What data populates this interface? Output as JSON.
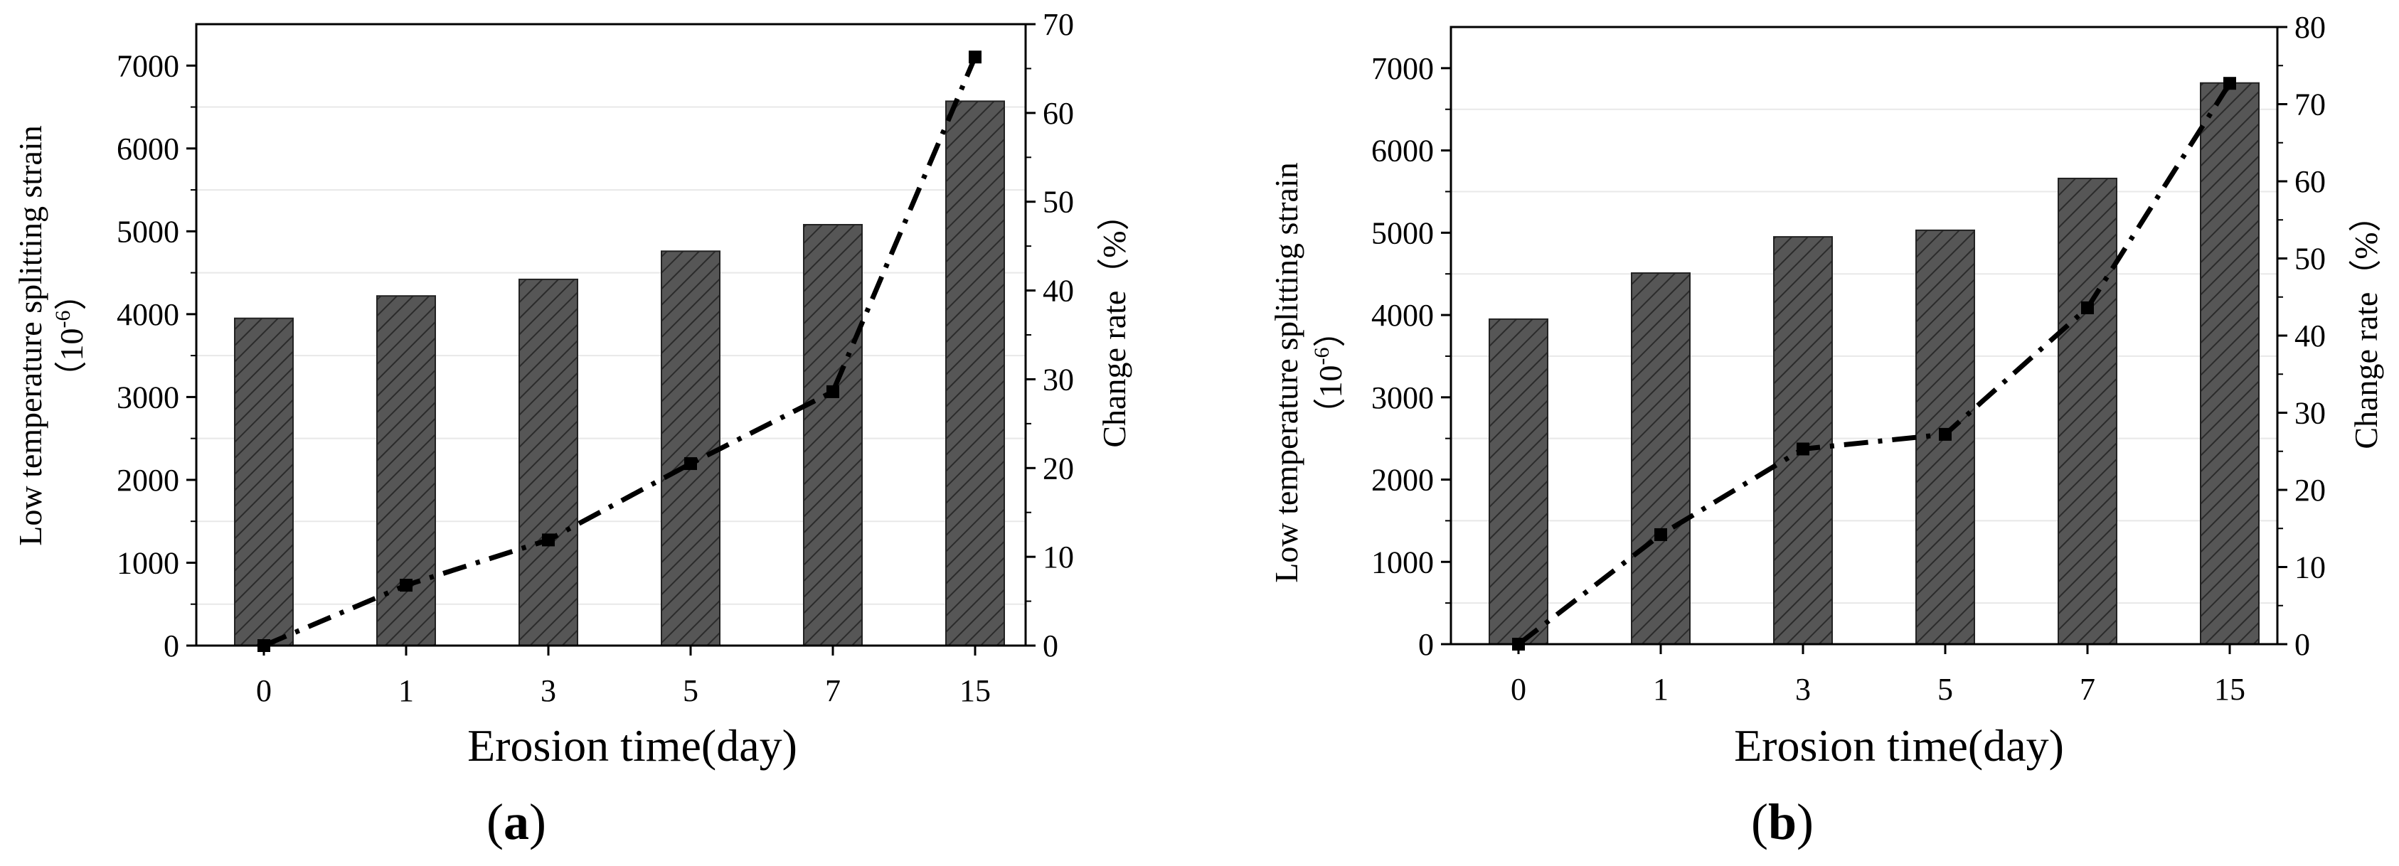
{
  "chart_data": [
    {
      "type": "bar+line",
      "panel": "a",
      "categories": [
        "0",
        "1",
        "3",
        "5",
        "7",
        "15"
      ],
      "bars": {
        "name": "Low temperature splitting strain",
        "values": [
          3950,
          4220,
          4420,
          4760,
          5080,
          6570
        ]
      },
      "line": {
        "name": "Change rate",
        "values": [
          0,
          6.8,
          11.9,
          20.5,
          28.6,
          66.3
        ]
      },
      "ylabel": "Low temperature splitting strain",
      "ylabel_unit": "（10",
      "ylabel_unit_sup": "-6",
      "ylabel_unit_close": "）",
      "y2label": "Change rate（%）",
      "xlabel": "Erosion time(day)",
      "ylim": [
        0,
        7500
      ],
      "y_ticks": [
        "0",
        "1000",
        "2000",
        "3000",
        "4000",
        "5000",
        "6000",
        "7000"
      ],
      "y2lim": [
        0,
        70
      ],
      "y2_ticks": [
        "0",
        "10",
        "20",
        "30",
        "40",
        "50",
        "60",
        "70"
      ],
      "label": "(a)",
      "label_open": "(",
      "label_letter": "a",
      "label_close": ")"
    },
    {
      "type": "bar+line",
      "panel": "b",
      "categories": [
        "0",
        "1",
        "3",
        "5",
        "7",
        "15"
      ],
      "bars": {
        "name": "Low temperature splitting strain",
        "values": [
          3950,
          4510,
          4950,
          5030,
          5660,
          6820
        ]
      },
      "line": {
        "name": "Change rate",
        "values": [
          0,
          14.2,
          25.3,
          27.2,
          43.6,
          72.7
        ]
      },
      "ylabel": "Low temperature splitting strain",
      "ylabel_unit": "（10",
      "ylabel_unit_sup": "-6",
      "ylabel_unit_close": "）",
      "y2label": "Change rate（%）",
      "xlabel": "Erosion time(day)",
      "ylim": [
        0,
        7500
      ],
      "y_ticks": [
        "0",
        "1000",
        "2000",
        "3000",
        "4000",
        "5000",
        "6000",
        "7000"
      ],
      "y2lim": [
        0,
        80
      ],
      "y2_ticks": [
        "0",
        "10",
        "20",
        "30",
        "40",
        "50",
        "60",
        "70",
        "80"
      ],
      "label": "(b)",
      "label_open": "(",
      "label_letter": "b",
      "label_close": ")"
    }
  ],
  "colors": {
    "bar_fill": "#555555",
    "bar_hatch": "#2a2a2a",
    "line": "#000000",
    "grid": "#e6e6e6"
  }
}
